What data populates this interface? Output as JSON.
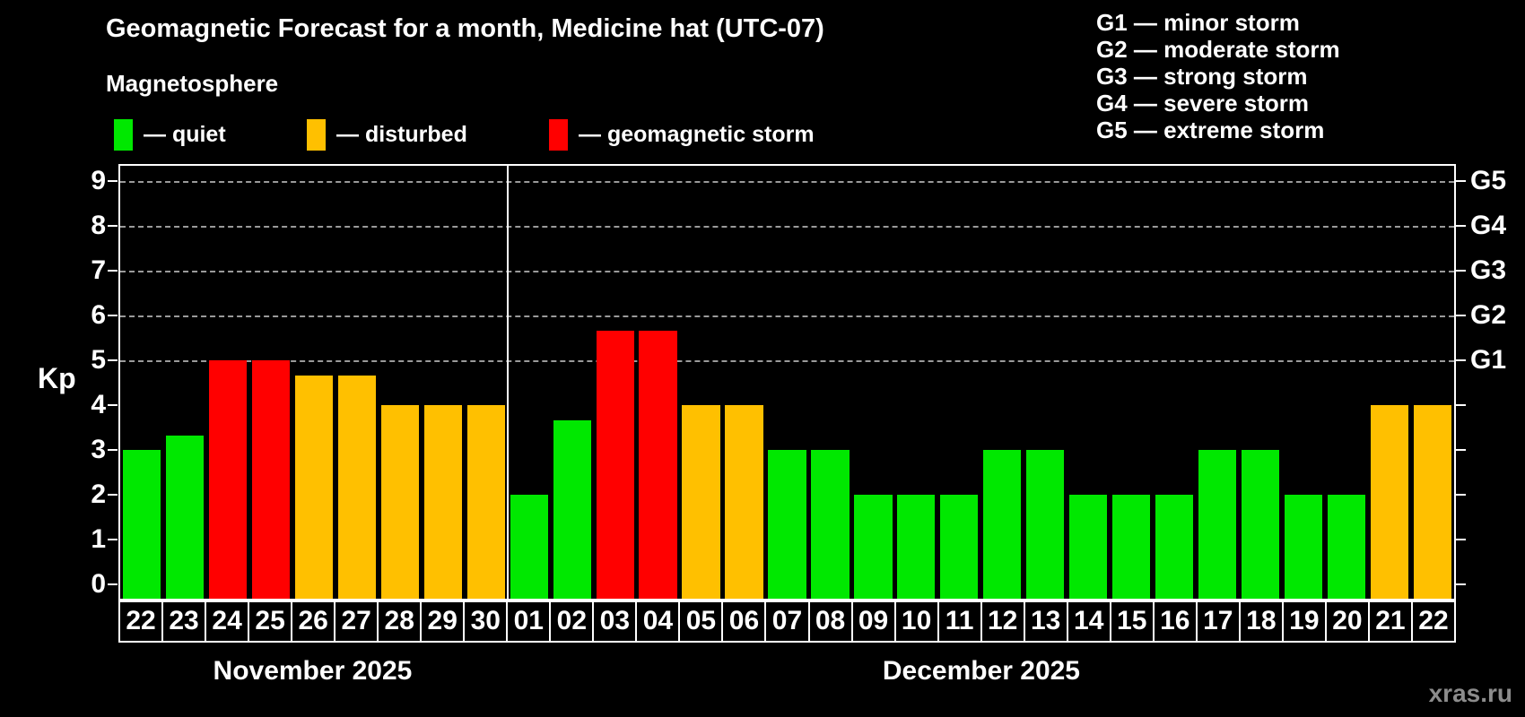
{
  "title": "Geomagnetic Forecast for a month, Medicine hat (UTC-07)",
  "subtitle": "Magnetosphere",
  "watermark": "xras.ru",
  "colors": {
    "background": "#000000",
    "quiet": "#00e800",
    "disturbed": "#ffc000",
    "storm": "#ff0000",
    "grid": "#9a9a9a",
    "axis": "#ffffff",
    "watermark": "#8c8c8c"
  },
  "legend": [
    {
      "key": "quiet",
      "label": "— quiet"
    },
    {
      "key": "disturbed",
      "label": "— disturbed"
    },
    {
      "key": "storm",
      "label": "— geomagnetic storm"
    }
  ],
  "g_legend": [
    "G1 — minor storm",
    "G2 — moderate storm",
    "G3 — strong storm",
    "G4 — severe storm",
    "G5 — extreme storm"
  ],
  "y_axis": {
    "label": "Kp",
    "ticks": [
      0,
      1,
      2,
      3,
      4,
      5,
      6,
      7,
      8,
      9
    ]
  },
  "right_axis": [
    {
      "kp": 5,
      "label": "G1"
    },
    {
      "kp": 6,
      "label": "G2"
    },
    {
      "kp": 7,
      "label": "G3"
    },
    {
      "kp": 8,
      "label": "G4"
    },
    {
      "kp": 9,
      "label": "G5"
    }
  ],
  "chart_data": {
    "type": "bar",
    "title": "Geomagnetic Forecast for a month, Medicine hat (UTC-07)",
    "xlabel": "",
    "ylabel": "Kp",
    "ylim": [
      0,
      9.4
    ],
    "grid": "horizontal dashed lines at Kp 5,6,7,8,9",
    "gridlines_kp": [
      5,
      6,
      7,
      8,
      9
    ],
    "legend_position": "top-left",
    "months": [
      {
        "label": "November 2025",
        "days": [
          "22",
          "23",
          "24",
          "25",
          "26",
          "27",
          "28",
          "29",
          "30"
        ]
      },
      {
        "label": "December 2025",
        "days": [
          "01",
          "02",
          "03",
          "04",
          "05",
          "06",
          "07",
          "08",
          "09",
          "10",
          "11",
          "12",
          "13",
          "14",
          "15",
          "16",
          "17",
          "18",
          "19",
          "20",
          "21",
          "22"
        ]
      }
    ],
    "points": [
      {
        "day": "22",
        "kp": 3.0,
        "status": "quiet"
      },
      {
        "day": "23",
        "kp": 3.33,
        "status": "quiet"
      },
      {
        "day": "24",
        "kp": 5.0,
        "status": "storm"
      },
      {
        "day": "25",
        "kp": 5.0,
        "status": "storm"
      },
      {
        "day": "26",
        "kp": 4.67,
        "status": "disturbed"
      },
      {
        "day": "27",
        "kp": 4.67,
        "status": "disturbed"
      },
      {
        "day": "28",
        "kp": 4.0,
        "status": "disturbed"
      },
      {
        "day": "29",
        "kp": 4.0,
        "status": "disturbed"
      },
      {
        "day": "30",
        "kp": 4.0,
        "status": "disturbed"
      },
      {
        "day": "01",
        "kp": 2.0,
        "status": "quiet"
      },
      {
        "day": "02",
        "kp": 3.67,
        "status": "quiet"
      },
      {
        "day": "03",
        "kp": 5.67,
        "status": "storm"
      },
      {
        "day": "04",
        "kp": 5.67,
        "status": "storm"
      },
      {
        "day": "05",
        "kp": 4.0,
        "status": "disturbed"
      },
      {
        "day": "06",
        "kp": 4.0,
        "status": "disturbed"
      },
      {
        "day": "07",
        "kp": 3.0,
        "status": "quiet"
      },
      {
        "day": "08",
        "kp": 3.0,
        "status": "quiet"
      },
      {
        "day": "09",
        "kp": 2.0,
        "status": "quiet"
      },
      {
        "day": "10",
        "kp": 2.0,
        "status": "quiet"
      },
      {
        "day": "11",
        "kp": 2.0,
        "status": "quiet"
      },
      {
        "day": "12",
        "kp": 3.0,
        "status": "quiet"
      },
      {
        "day": "13",
        "kp": 3.0,
        "status": "quiet"
      },
      {
        "day": "14",
        "kp": 2.0,
        "status": "quiet"
      },
      {
        "day": "15",
        "kp": 2.0,
        "status": "quiet"
      },
      {
        "day": "16",
        "kp": 2.0,
        "status": "quiet"
      },
      {
        "day": "17",
        "kp": 3.0,
        "status": "quiet"
      },
      {
        "day": "18",
        "kp": 3.0,
        "status": "quiet"
      },
      {
        "day": "19",
        "kp": 2.0,
        "status": "quiet"
      },
      {
        "day": "20",
        "kp": 2.0,
        "status": "quiet"
      },
      {
        "day": "21",
        "kp": 4.0,
        "status": "disturbed"
      },
      {
        "day": "22",
        "kp": 4.0,
        "status": "disturbed"
      }
    ]
  }
}
